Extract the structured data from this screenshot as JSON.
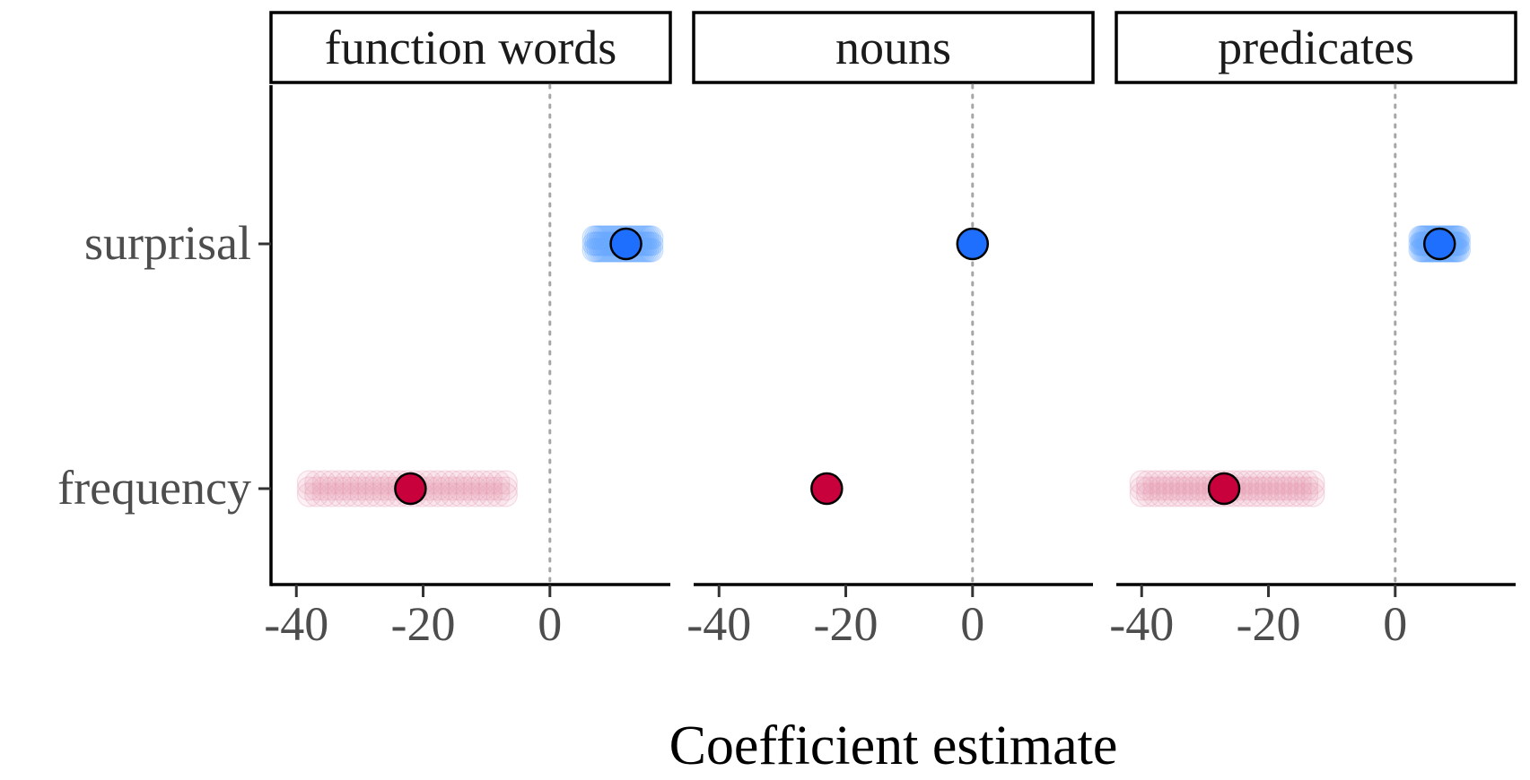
{
  "chart_data": {
    "type": "scatter",
    "xlabel": "Coefficient estimate",
    "ylabel": "",
    "xlim": [
      -44,
      19
    ],
    "x_ticks": [
      -40,
      -20,
      0
    ],
    "x_tick_labels": [
      "-40",
      "-20",
      "0"
    ],
    "y_categories": [
      "surprisal",
      "frequency"
    ],
    "reference_line_x": 0,
    "grid": false,
    "colors": {
      "surprisal": "#1f6fff",
      "frequency": "#c8003c",
      "surprisal_cloud": "#6aa8ff",
      "frequency_cloud": "#e7a1b8"
    },
    "panels": [
      {
        "title": "function words",
        "points": [
          {
            "term": "surprisal",
            "estimate": 12,
            "range": [
              7,
              16
            ]
          },
          {
            "term": "frequency",
            "estimate": -22,
            "range": [
              -38,
              -7
            ]
          }
        ]
      },
      {
        "title": "nouns",
        "points": [
          {
            "term": "surprisal",
            "estimate": 0,
            "range": [
              0,
              0
            ]
          },
          {
            "term": "frequency",
            "estimate": -23,
            "range": [
              -23,
              -23
            ]
          }
        ]
      },
      {
        "title": "predicates",
        "points": [
          {
            "term": "surprisal",
            "estimate": 7,
            "range": [
              4,
              10
            ]
          },
          {
            "term": "frequency",
            "estimate": -27,
            "range": [
              -40,
              -13
            ]
          }
        ]
      }
    ]
  }
}
